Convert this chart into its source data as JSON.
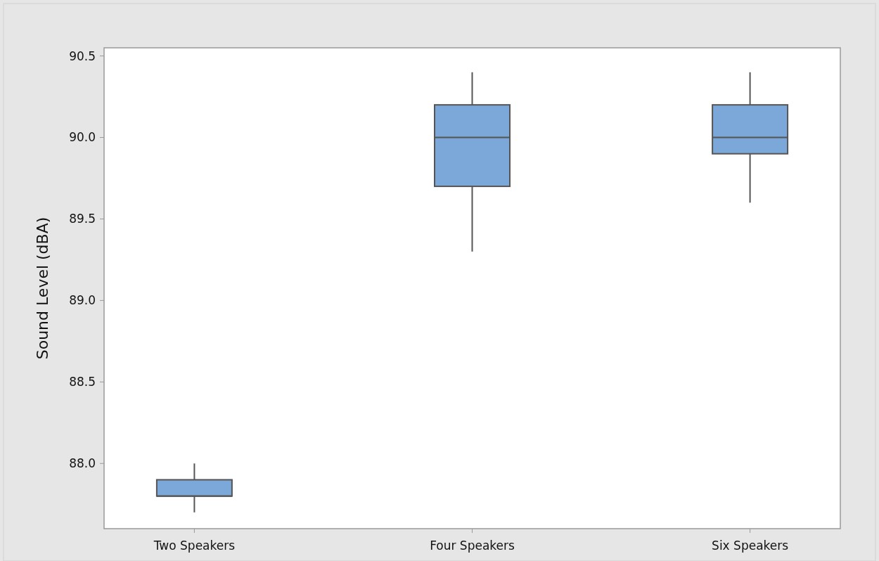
{
  "chart_data": {
    "type": "box",
    "ylabel": "Sound Level (dBA)",
    "categories": [
      "Two Speakers",
      "Four Speakers",
      "Six Speakers"
    ],
    "series": [
      {
        "color": "#7ba7d9",
        "boxes": [
          {
            "low": 87.7,
            "q1": 87.8,
            "median": 87.8,
            "q3": 87.9,
            "high": 88.0
          },
          {
            "low": 89.3,
            "q1": 89.7,
            "median": 90.0,
            "q3": 90.2,
            "high": 90.4
          },
          {
            "low": 89.6,
            "q1": 89.9,
            "median": 90.0,
            "q3": 90.2,
            "high": 90.4
          }
        ]
      }
    ],
    "ylim": [
      87.6,
      90.55
    ],
    "yticks": [
      {
        "value": 88,
        "label": "88.0"
      },
      88.5,
      {
        "value": 89,
        "label": "89.0"
      },
      89.5,
      {
        "value": 90,
        "label": "90.0"
      },
      90.5
    ],
    "grid": false
  }
}
